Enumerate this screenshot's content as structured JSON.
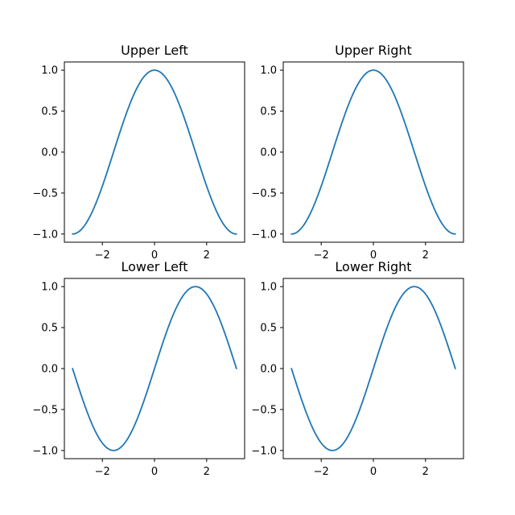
{
  "chart_data": [
    {
      "type": "line",
      "title": "Upper Left",
      "xlabel": "",
      "ylabel": "",
      "xlim": [
        -3.4558,
        3.4558
      ],
      "ylim": [
        -1.1,
        1.1
      ],
      "xticks": [
        -2,
        0,
        2
      ],
      "xtick_labels": [
        "−2",
        "0",
        "2"
      ],
      "yticks": [
        -1.0,
        -0.5,
        0.0,
        0.5,
        1.0
      ],
      "ytick_labels": [
        "−1.0",
        "−0.5",
        "0.0",
        "0.5",
        "1.0"
      ],
      "grid": false,
      "series": [
        {
          "function": "cos",
          "color": "#1f77b4",
          "x": [
            -3.1416,
            -2.8274,
            -2.5133,
            -2.1991,
            -1.885,
            -1.5708,
            -1.2566,
            -0.9425,
            -0.6283,
            -0.3142,
            0,
            0.3142,
            0.6283,
            0.9425,
            1.2566,
            1.5708,
            1.885,
            2.1991,
            2.5133,
            2.8274,
            3.1416
          ],
          "y": [
            -1.0,
            -0.951,
            -0.809,
            -0.588,
            -0.309,
            0.0,
            0.309,
            0.588,
            0.809,
            0.951,
            1.0,
            0.951,
            0.809,
            0.588,
            0.309,
            0.0,
            -0.309,
            -0.588,
            -0.809,
            -0.951,
            -1.0
          ]
        }
      ]
    },
    {
      "type": "line",
      "title": "Upper Right",
      "xlabel": "",
      "ylabel": "",
      "xlim": [
        -3.4558,
        3.4558
      ],
      "ylim": [
        -1.1,
        1.1
      ],
      "xticks": [
        -2,
        0,
        2
      ],
      "xtick_labels": [
        "−2",
        "0",
        "2"
      ],
      "yticks": [
        -1.0,
        -0.5,
        0.0,
        0.5,
        1.0
      ],
      "ytick_labels": [
        "−1.0",
        "−0.5",
        "0.0",
        "0.5",
        "1.0"
      ],
      "grid": false,
      "series": [
        {
          "function": "cos",
          "color": "#1f77b4",
          "x": [
            -3.1416,
            -2.8274,
            -2.5133,
            -2.1991,
            -1.885,
            -1.5708,
            -1.2566,
            -0.9425,
            -0.6283,
            -0.3142,
            0,
            0.3142,
            0.6283,
            0.9425,
            1.2566,
            1.5708,
            1.885,
            2.1991,
            2.5133,
            2.8274,
            3.1416
          ],
          "y": [
            -1.0,
            -0.951,
            -0.809,
            -0.588,
            -0.309,
            0.0,
            0.309,
            0.588,
            0.809,
            0.951,
            1.0,
            0.951,
            0.809,
            0.588,
            0.309,
            0.0,
            -0.309,
            -0.588,
            -0.809,
            -0.951,
            -1.0
          ]
        }
      ]
    },
    {
      "type": "line",
      "title": "Lower Left",
      "xlabel": "",
      "ylabel": "",
      "xlim": [
        -3.4558,
        3.4558
      ],
      "ylim": [
        -1.1,
        1.1
      ],
      "xticks": [
        -2,
        0,
        2
      ],
      "xtick_labels": [
        "−2",
        "0",
        "2"
      ],
      "yticks": [
        -1.0,
        -0.5,
        0.0,
        0.5,
        1.0
      ],
      "ytick_labels": [
        "−1.0",
        "−0.5",
        "0.0",
        "0.5",
        "1.0"
      ],
      "grid": false,
      "series": [
        {
          "function": "sin",
          "color": "#1f77b4",
          "x": [
            -3.1416,
            -2.8274,
            -2.5133,
            -2.1991,
            -1.885,
            -1.5708,
            -1.2566,
            -0.9425,
            -0.6283,
            -0.3142,
            0,
            0.3142,
            0.6283,
            0.9425,
            1.2566,
            1.5708,
            1.885,
            2.1991,
            2.5133,
            2.8274,
            3.1416
          ],
          "y": [
            0.0,
            -0.309,
            -0.588,
            -0.809,
            -0.951,
            -1.0,
            -0.951,
            -0.809,
            -0.588,
            -0.309,
            0.0,
            0.309,
            0.588,
            0.809,
            0.951,
            1.0,
            0.951,
            0.809,
            0.588,
            0.309,
            0.0
          ]
        }
      ]
    },
    {
      "type": "line",
      "title": "Lower Right",
      "xlabel": "",
      "ylabel": "",
      "xlim": [
        -3.4558,
        3.4558
      ],
      "ylim": [
        -1.1,
        1.1
      ],
      "xticks": [
        -2,
        0,
        2
      ],
      "xtick_labels": [
        "−2",
        "0",
        "2"
      ],
      "yticks": [
        -1.0,
        -0.5,
        0.0,
        0.5,
        1.0
      ],
      "ytick_labels": [
        "−1.0",
        "−0.5",
        "0.0",
        "0.5",
        "1.0"
      ],
      "grid": false,
      "series": [
        {
          "function": "sin",
          "color": "#1f77b4",
          "x": [
            -3.1416,
            -2.8274,
            -2.5133,
            -2.1991,
            -1.885,
            -1.5708,
            -1.2566,
            -0.9425,
            -0.6283,
            -0.3142,
            0,
            0.3142,
            0.6283,
            0.9425,
            1.2566,
            1.5708,
            1.885,
            2.1991,
            2.5133,
            2.8274,
            3.1416
          ],
          "y": [
            0.0,
            -0.309,
            -0.588,
            -0.809,
            -0.951,
            -1.0,
            -0.951,
            -0.809,
            -0.588,
            -0.309,
            0.0,
            0.309,
            0.588,
            0.809,
            0.951,
            1.0,
            0.951,
            0.809,
            0.588,
            0.309,
            0.0
          ]
        }
      ]
    }
  ]
}
